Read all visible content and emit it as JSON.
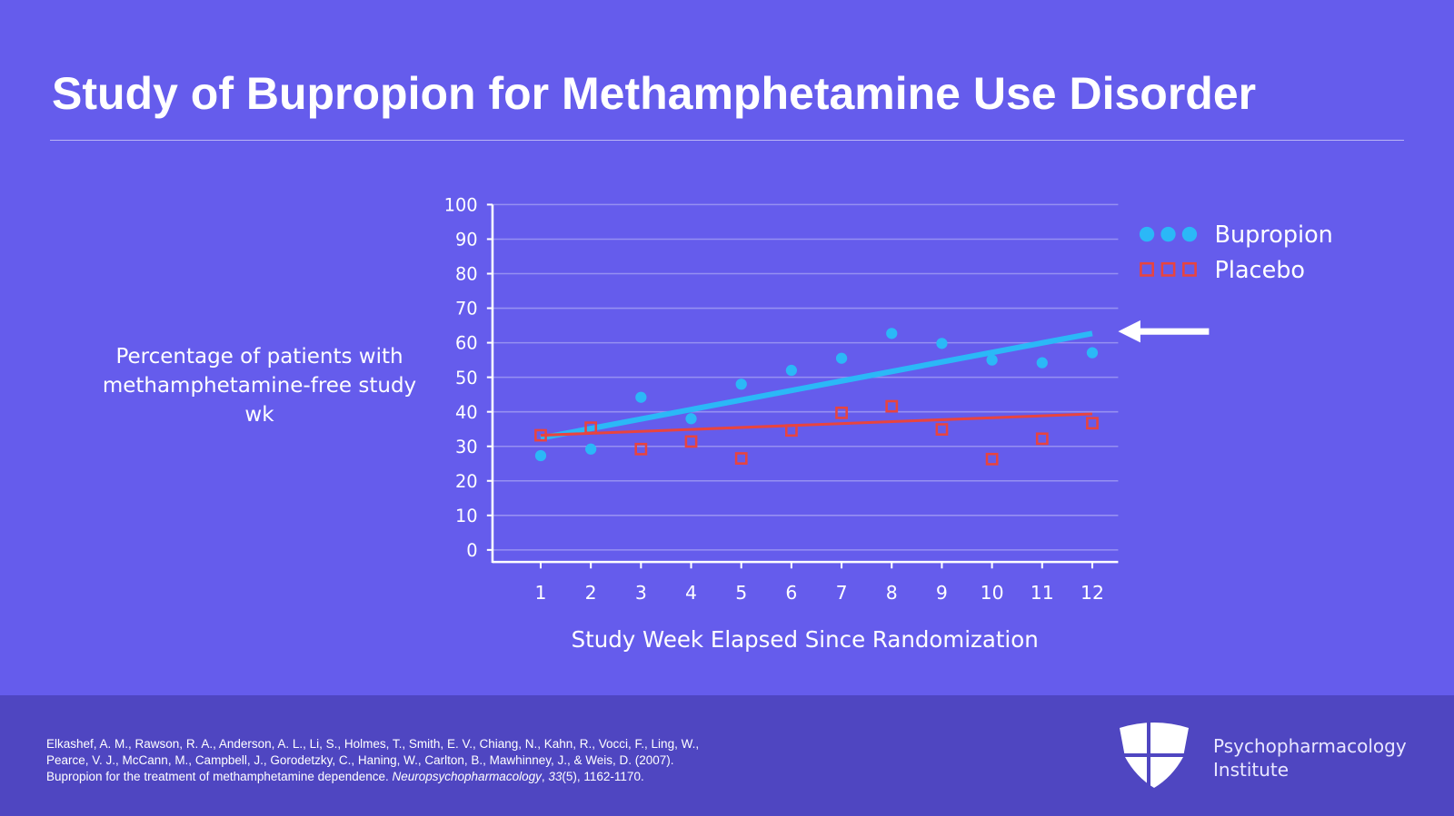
{
  "title": "Study of Bupropion for Methamphetamine Use Disorder",
  "y_axis_label": "Percentage of patients with methamphetamine-free study wk",
  "chart_data": {
    "type": "scatter",
    "title": "Study of Bupropion for Methamphetamine Use Disorder",
    "xlabel": "Study Week Elapsed Since Randomization",
    "ylabel": "Percentage of patients with methamphetamine-free study wk",
    "x": [
      1,
      2,
      3,
      4,
      5,
      6,
      7,
      8,
      9,
      10,
      11,
      12
    ],
    "x_tick_labels": [
      "1",
      "2",
      "3",
      "4",
      "5",
      "6",
      "7",
      "8",
      "9",
      "10",
      "11",
      "12"
    ],
    "y_tick_labels": [
      "0",
      "10",
      "20",
      "30",
      "40",
      "50",
      "60",
      "70",
      "80",
      "90",
      "100"
    ],
    "ylim": [
      0,
      100
    ],
    "grid": true,
    "legend_position": "top-right",
    "series": [
      {
        "name": "Bupropion",
        "marker": "circle",
        "color": "#2bb8f7",
        "values": [
          27.3,
          29.2,
          44.2,
          38,
          48,
          52,
          55.5,
          62.7,
          59.8,
          55,
          54.2,
          57.1
        ],
        "trend": [
          32.4,
          62.7
        ]
      },
      {
        "name": "Placebo",
        "marker": "square",
        "color": "#e8443f",
        "values": [
          33.2,
          35.4,
          29.2,
          31.4,
          26.5,
          34.6,
          39.7,
          41.6,
          34.9,
          26.3,
          32.2,
          36.7
        ],
        "trend": [
          33.2,
          39.4
        ]
      }
    ],
    "annotations": [
      {
        "type": "arrow",
        "points_to": "Bupropion trend line end",
        "color": "#ffffff"
      }
    ]
  },
  "footer": {
    "citation_line1": "Elkashef, A. M., Rawson, R. A., Anderson, A. L., Li, S., Holmes, T., Smith, E. V., Chiang, N., Kahn, R., Vocci, F., Ling, W.,",
    "citation_line2": "Pearce, V. J., McCann, M., Campbell, J., Gorodetzky, C., Haning, W., Carlton, B., Mawhinney, J., & Weis, D. (2007).",
    "citation_line3_pre": "Bupropion for the treatment of methamphetamine dependence. ",
    "citation_journal": "Neuropsychopharmacology",
    "citation_sep": ", ",
    "citation_volume": "33",
    "citation_tail": "(5), 1162-1170.",
    "brand_line1": "Psychopharmacology",
    "brand_line2": "Institute"
  }
}
